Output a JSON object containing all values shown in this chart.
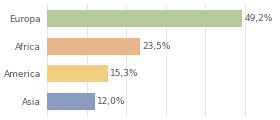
{
  "categories": [
    "Europa",
    "Africa",
    "America",
    "Asia"
  ],
  "values": [
    49.2,
    23.5,
    15.3,
    12.0
  ],
  "labels": [
    "49,2%",
    "23,5%",
    "15,3%",
    "12,0%"
  ],
  "bar_colors": [
    "#b5c99a",
    "#e8b48a",
    "#f0d080",
    "#8a9cc0"
  ],
  "background_color": "#ffffff",
  "bar_height": 0.62,
  "label_fontsize": 6.5,
  "category_fontsize": 6.5,
  "xlim": 58,
  "text_color": "#555555"
}
